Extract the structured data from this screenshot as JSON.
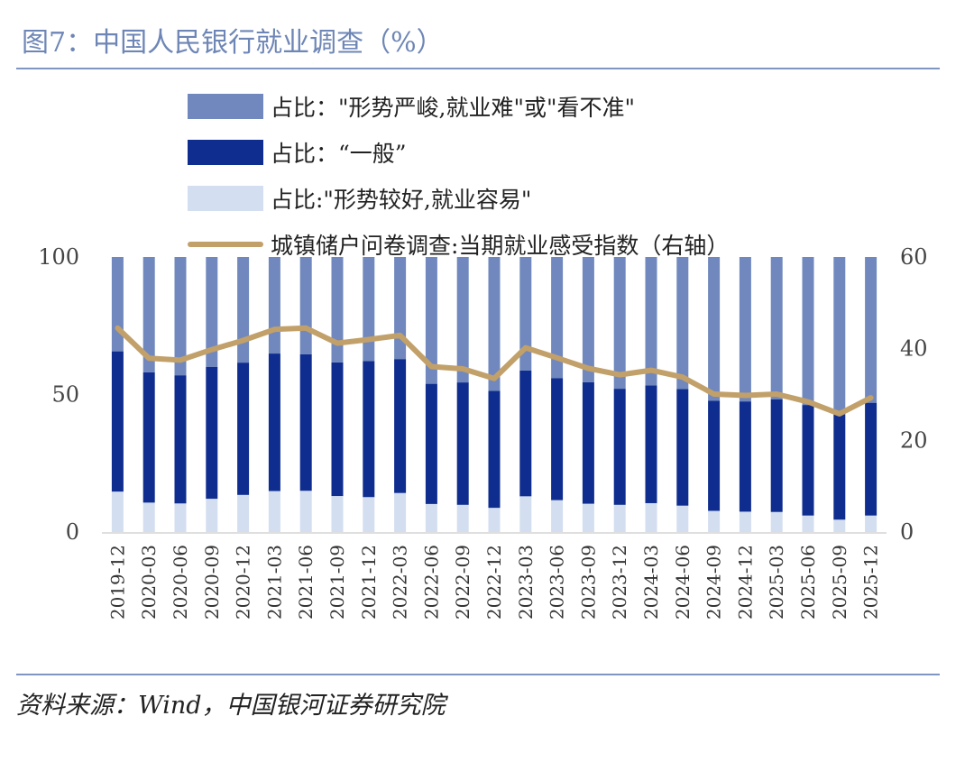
{
  "header": {
    "title": "图7：中国人民银行就业调查（%）"
  },
  "footer": {
    "source": "资料来源：Wind，中国银河证券研究院"
  },
  "colors": {
    "difficult": "#7088bd",
    "general": "#0f2d8f",
    "good": "#d3def0",
    "index_line": "#c2a06a",
    "rule": "#7f95c2",
    "title": "#6e86b6"
  },
  "legend": [
    {
      "label": "占比：\"形势严峻,就业难\"或\"看不准\"",
      "kind": "bar",
      "color": "#7088bd"
    },
    {
      "label": "占比：“一般”",
      "kind": "bar",
      "color": "#0f2d8f"
    },
    {
      "label": "占比:\"形势较好,就业容易\"",
      "kind": "bar",
      "color": "#d3def0"
    },
    {
      "label": "城镇储户问卷调查:当期就业感受指数（右轴）",
      "kind": "line",
      "color": "#c2a06a"
    }
  ],
  "chart_data": {
    "type": "bar",
    "stacked": true,
    "title": "图7：中国人民银行就业调查（%）",
    "categories": [
      "2019-12",
      "2020-03",
      "2020-06",
      "2020-09",
      "2020-12",
      "2021-03",
      "2021-06",
      "2021-09",
      "2021-12",
      "2022-03",
      "2022-06",
      "2022-09",
      "2022-12",
      "2023-03",
      "2023-06",
      "2023-09",
      "2023-12",
      "2024-03",
      "2024-06",
      "2024-09",
      "2024-12",
      "2025-03",
      "2025-06",
      "2025-09",
      "2025-12"
    ],
    "series": [
      {
        "name": "占比:\"形势较好,就业容易\"",
        "axis": "left",
        "color": "#d3def0",
        "values": [
          14.7,
          10.7,
          10.4,
          12.1,
          13.5,
          14.9,
          15.0,
          13.1,
          12.7,
          14.2,
          10.2,
          9.9,
          8.8,
          13.0,
          11.6,
          10.3,
          9.9,
          10.5,
          9.6,
          7.7,
          7.4,
          7.3,
          6.0,
          4.5,
          6.0
        ]
      },
      {
        "name": "占比：“一般”",
        "axis": "left",
        "color": "#0f2d8f",
        "values": [
          51.0,
          47.4,
          46.6,
          47.9,
          48.1,
          50.0,
          49.6,
          48.6,
          49.5,
          48.7,
          43.7,
          44.5,
          42.5,
          45.7,
          44.3,
          44.2,
          42.2,
          42.8,
          42.4,
          40.0,
          40.1,
          41.0,
          40.2,
          38.3,
          41.0
        ]
      },
      {
        "name": "占比：\"形势严峻,就业难\"或\"看不准\"",
        "axis": "left",
        "color": "#7088bd",
        "values": [
          34.3,
          41.9,
          43.0,
          40.0,
          38.4,
          35.1,
          35.4,
          38.3,
          37.8,
          37.1,
          46.1,
          45.6,
          48.7,
          41.3,
          44.1,
          45.5,
          47.9,
          46.7,
          48.0,
          52.3,
          52.5,
          51.7,
          53.8,
          57.2,
          53.0
        ]
      },
      {
        "name": "城镇储户问卷调查:当期就业感受指数（右轴）",
        "type": "line",
        "axis": "right",
        "color": "#c2a06a",
        "values": [
          44.5,
          37.9,
          37.5,
          39.8,
          41.8,
          44.2,
          44.5,
          41.2,
          42.0,
          42.9,
          36.1,
          35.6,
          33.5,
          40.2,
          38.0,
          35.7,
          34.3,
          35.3,
          33.8,
          30.1,
          29.8,
          30.1,
          28.4,
          25.8,
          29.3
        ]
      }
    ],
    "left_axis": {
      "ylim": [
        0,
        100
      ],
      "ticks": [
        0,
        50,
        100
      ]
    },
    "right_axis": {
      "ylim": [
        0,
        60
      ],
      "ticks": [
        0,
        20,
        40,
        60
      ]
    },
    "xlabel": "",
    "ylabel": "",
    "grid": false,
    "legend_position": "top"
  }
}
